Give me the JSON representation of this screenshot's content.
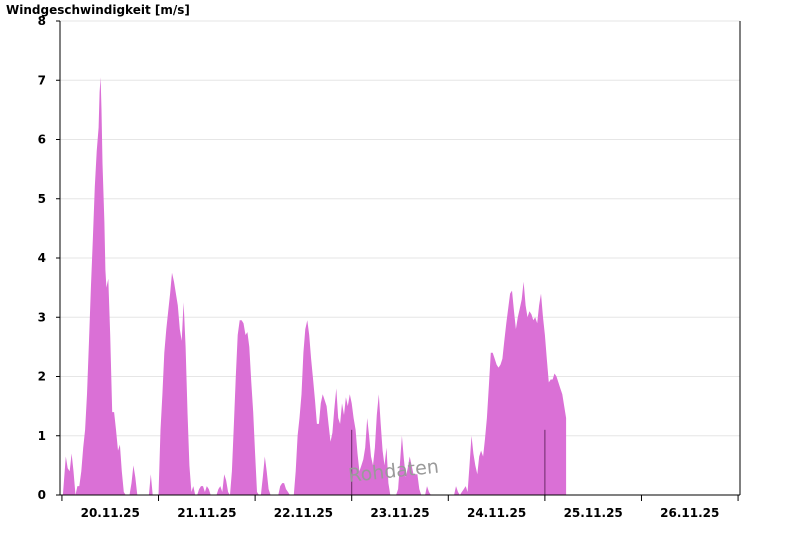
{
  "colors": {
    "fill": "#da70d6",
    "grid": "#e6e6e6",
    "axis": "#000000",
    "watermark": "#9a9a9a"
  },
  "watermark_text": "Rohdaten",
  "chart_data": {
    "type": "area",
    "title": "Windgeschwindigkeit [m/s]",
    "xlabel": "",
    "ylabel": "Windgeschwindigkeit [m/s]",
    "ylim": [
      0,
      8
    ],
    "xlim": [
      -0.52,
      6.52
    ],
    "yticks": [
      "0",
      "1",
      "2",
      "3",
      "4",
      "5",
      "6",
      "7",
      "8"
    ],
    "xticks": [
      "20.11.25",
      "21.11.25",
      "22.11.25",
      "23.11.25",
      "24.11.25",
      "25.11.25",
      "26.11.25"
    ],
    "grid": true,
    "x_unit": "days relative to 20.11.25 12:00",
    "series": [
      {
        "values": [
          [
            -0.52,
            0
          ],
          [
            -0.49,
            0
          ],
          [
            -0.46,
            0.65
          ],
          [
            -0.44,
            0.45
          ],
          [
            -0.42,
            0.4
          ],
          [
            -0.4,
            0.7
          ],
          [
            -0.38,
            0.4
          ],
          [
            -0.36,
            0
          ],
          [
            -0.34,
            0.15
          ],
          [
            -0.32,
            0.15
          ],
          [
            -0.3,
            0.4
          ],
          [
            -0.28,
            0.8
          ],
          [
            -0.26,
            1.1
          ],
          [
            -0.24,
            1.7
          ],
          [
            -0.22,
            2.6
          ],
          [
            -0.2,
            3.5
          ],
          [
            -0.18,
            4.3
          ],
          [
            -0.16,
            5.2
          ],
          [
            -0.14,
            5.8
          ],
          [
            -0.12,
            6.2
          ],
          [
            -0.11,
            6.8
          ],
          [
            -0.1,
            7.05
          ],
          [
            -0.09,
            6.5
          ],
          [
            -0.08,
            5.6
          ],
          [
            -0.06,
            4.6
          ],
          [
            -0.05,
            3.8
          ],
          [
            -0.04,
            3.5
          ],
          [
            -0.02,
            3.65
          ],
          [
            0,
            2.7
          ],
          [
            0.02,
            1.4
          ],
          [
            0.04,
            1.4
          ],
          [
            0.06,
            1.1
          ],
          [
            0.08,
            0.75
          ],
          [
            0.1,
            0.85
          ],
          [
            0.12,
            0.4
          ],
          [
            0.14,
            0.05
          ],
          [
            0.16,
            0
          ],
          [
            0.2,
            0
          ],
          [
            0.22,
            0.2
          ],
          [
            0.24,
            0.5
          ],
          [
            0.26,
            0.3
          ],
          [
            0.28,
            0
          ],
          [
            0.4,
            0
          ],
          [
            0.42,
            0.35
          ],
          [
            0.44,
            0
          ],
          [
            0.5,
            0
          ],
          [
            0.52,
            1.1
          ],
          [
            0.54,
            1.7
          ],
          [
            0.56,
            2.4
          ],
          [
            0.58,
            2.8
          ],
          [
            0.6,
            3.1
          ],
          [
            0.62,
            3.4
          ],
          [
            0.64,
            3.75
          ],
          [
            0.66,
            3.6
          ],
          [
            0.68,
            3.4
          ],
          [
            0.7,
            3.2
          ],
          [
            0.72,
            2.8
          ],
          [
            0.74,
            2.6
          ],
          [
            0.76,
            3.25
          ],
          [
            0.78,
            2.5
          ],
          [
            0.8,
            1.4
          ],
          [
            0.82,
            0.5
          ],
          [
            0.84,
            0.05
          ],
          [
            0.86,
            0.15
          ],
          [
            0.88,
            0
          ],
          [
            0.9,
            0
          ],
          [
            0.92,
            0.1
          ],
          [
            0.94,
            0.15
          ],
          [
            0.96,
            0.15
          ],
          [
            0.98,
            0.05
          ],
          [
            1,
            0.15
          ],
          [
            1.02,
            0.1
          ],
          [
            1.04,
            0
          ],
          [
            1.1,
            0
          ],
          [
            1.12,
            0.1
          ],
          [
            1.14,
            0.15
          ],
          [
            1.16,
            0.05
          ],
          [
            1.18,
            0.35
          ],
          [
            1.2,
            0.25
          ],
          [
            1.22,
            0.05
          ],
          [
            1.24,
            0
          ],
          [
            1.26,
            0.4
          ],
          [
            1.28,
            1.2
          ],
          [
            1.3,
            2.0
          ],
          [
            1.32,
            2.7
          ],
          [
            1.34,
            2.95
          ],
          [
            1.36,
            2.95
          ],
          [
            1.38,
            2.9
          ],
          [
            1.4,
            2.7
          ],
          [
            1.42,
            2.75
          ],
          [
            1.44,
            2.5
          ],
          [
            1.46,
            1.9
          ],
          [
            1.48,
            1.4
          ],
          [
            1.5,
            0.7
          ],
          [
            1.52,
            0.05
          ],
          [
            1.54,
            0
          ],
          [
            1.56,
            0
          ],
          [
            1.58,
            0.3
          ],
          [
            1.6,
            0.65
          ],
          [
            1.62,
            0.4
          ],
          [
            1.64,
            0.1
          ],
          [
            1.66,
            0
          ],
          [
            1.74,
            0
          ],
          [
            1.76,
            0.15
          ],
          [
            1.78,
            0.2
          ],
          [
            1.8,
            0.2
          ],
          [
            1.82,
            0.1
          ],
          [
            1.84,
            0.05
          ],
          [
            1.86,
            0
          ],
          [
            1.9,
            0
          ],
          [
            1.92,
            0.4
          ],
          [
            1.94,
            1.0
          ],
          [
            1.96,
            1.3
          ],
          [
            1.98,
            1.7
          ],
          [
            2,
            2.4
          ],
          [
            2.02,
            2.8
          ],
          [
            2.04,
            2.95
          ],
          [
            2.06,
            2.7
          ],
          [
            2.08,
            2.3
          ],
          [
            2.1,
            1.95
          ],
          [
            2.12,
            1.6
          ],
          [
            2.14,
            1.2
          ],
          [
            2.16,
            1.2
          ],
          [
            2.18,
            1.55
          ],
          [
            2.2,
            1.7
          ],
          [
            2.22,
            1.6
          ],
          [
            2.24,
            1.5
          ],
          [
            2.26,
            1.2
          ],
          [
            2.28,
            0.9
          ],
          [
            2.3,
            1.05
          ],
          [
            2.32,
            1.45
          ],
          [
            2.34,
            1.8
          ],
          [
            2.36,
            1.3
          ],
          [
            2.38,
            1.2
          ],
          [
            2.4,
            1.55
          ],
          [
            2.42,
            1.35
          ],
          [
            2.44,
            1.65
          ],
          [
            2.46,
            1.5
          ],
          [
            2.48,
            1.7
          ],
          [
            2.5,
            1.55
          ],
          [
            2.52,
            1.3
          ],
          [
            2.54,
            1.1
          ],
          [
            2.56,
            0.7
          ],
          [
            2.58,
            0.4
          ],
          [
            2.6,
            0.5
          ],
          [
            2.62,
            0.6
          ],
          [
            2.64,
            0.8
          ],
          [
            2.66,
            1.3
          ],
          [
            2.68,
            1.0
          ],
          [
            2.7,
            0.65
          ],
          [
            2.72,
            0.5
          ],
          [
            2.74,
            0.8
          ],
          [
            2.76,
            1.35
          ],
          [
            2.78,
            1.7
          ],
          [
            2.8,
            1.2
          ],
          [
            2.82,
            0.75
          ],
          [
            2.84,
            0.5
          ],
          [
            2.86,
            0.8
          ],
          [
            2.88,
            0.2
          ],
          [
            2.9,
            0
          ],
          [
            2.96,
            0
          ],
          [
            2.98,
            0.1
          ],
          [
            3,
            0.55
          ],
          [
            3.02,
            1.0
          ],
          [
            3.04,
            0.6
          ],
          [
            3.06,
            0.3
          ],
          [
            3.08,
            0.45
          ],
          [
            3.1,
            0.65
          ],
          [
            3.12,
            0.5
          ],
          [
            3.14,
            0.35
          ],
          [
            3.16,
            0.35
          ],
          [
            3.18,
            0.35
          ],
          [
            3.2,
            0.1
          ],
          [
            3.22,
            0
          ],
          [
            3.26,
            0
          ],
          [
            3.28,
            0.15
          ],
          [
            3.3,
            0.05
          ],
          [
            3.32,
            0
          ],
          [
            3.56,
            0
          ],
          [
            3.58,
            0.15
          ],
          [
            3.6,
            0.05
          ],
          [
            3.62,
            0
          ],
          [
            3.64,
            0.05
          ],
          [
            3.66,
            0.1
          ],
          [
            3.68,
            0.15
          ],
          [
            3.7,
            0.05
          ],
          [
            3.72,
            0.5
          ],
          [
            3.74,
            1.0
          ],
          [
            3.76,
            0.7
          ],
          [
            3.78,
            0.5
          ],
          [
            3.8,
            0.35
          ],
          [
            3.82,
            0.65
          ],
          [
            3.84,
            0.75
          ],
          [
            3.86,
            0.65
          ],
          [
            3.88,
            0.95
          ],
          [
            3.9,
            1.3
          ],
          [
            3.92,
            1.85
          ],
          [
            3.94,
            2.4
          ],
          [
            3.96,
            2.4
          ],
          [
            3.98,
            2.3
          ],
          [
            4,
            2.2
          ],
          [
            4.02,
            2.15
          ],
          [
            4.04,
            2.2
          ],
          [
            4.06,
            2.3
          ],
          [
            4.08,
            2.6
          ],
          [
            4.1,
            2.9
          ],
          [
            4.12,
            3.15
          ],
          [
            4.14,
            3.4
          ],
          [
            4.16,
            3.45
          ],
          [
            4.18,
            3.1
          ],
          [
            4.2,
            2.8
          ],
          [
            4.22,
            3.0
          ],
          [
            4.24,
            3.15
          ],
          [
            4.26,
            3.3
          ],
          [
            4.28,
            3.6
          ],
          [
            4.3,
            3.2
          ],
          [
            4.32,
            3.0
          ],
          [
            4.34,
            3.1
          ],
          [
            4.36,
            3.05
          ],
          [
            4.38,
            2.95
          ],
          [
            4.4,
            3.0
          ],
          [
            4.42,
            2.9
          ],
          [
            4.44,
            3.2
          ],
          [
            4.46,
            3.4
          ],
          [
            4.48,
            3.0
          ],
          [
            4.5,
            2.7
          ],
          [
            4.52,
            2.3
          ],
          [
            4.54,
            1.9
          ],
          [
            4.56,
            1.95
          ],
          [
            4.58,
            1.95
          ],
          [
            4.6,
            2.05
          ],
          [
            4.62,
            2.0
          ],
          [
            4.64,
            1.9
          ],
          [
            4.66,
            1.8
          ],
          [
            4.68,
            1.7
          ],
          [
            4.7,
            1.5
          ],
          [
            4.72,
            1.3
          ]
        ]
      }
    ]
  }
}
